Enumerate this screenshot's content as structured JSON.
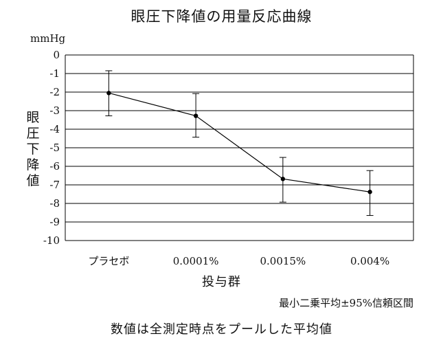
{
  "chart_data": {
    "type": "line",
    "title": "眼圧下降値の用量反応曲線",
    "unit": "mmHg",
    "ylabel": "眼圧下降値",
    "xlabel": "投与群",
    "categories": [
      "プラセボ",
      "0.0001%",
      "0.0015%",
      "0.004%"
    ],
    "values": [
      -2.05,
      -3.28,
      -6.68,
      -7.38
    ],
    "ci_lower": [
      -3.28,
      -4.43,
      -7.93,
      -8.65
    ],
    "ci_upper": [
      -0.85,
      -2.08,
      -5.52,
      -6.23
    ],
    "ylim": [
      -10,
      0
    ],
    "yticks": [
      "0",
      "-1",
      "-2",
      "-3",
      "-4",
      "-5",
      "-6",
      "-7",
      "-8",
      "-9",
      "-10"
    ],
    "grid": true,
    "ci_note": "最小二乗平均±95%信頼区間",
    "footnote": "数値は全測定時点をプールした平均値"
  }
}
